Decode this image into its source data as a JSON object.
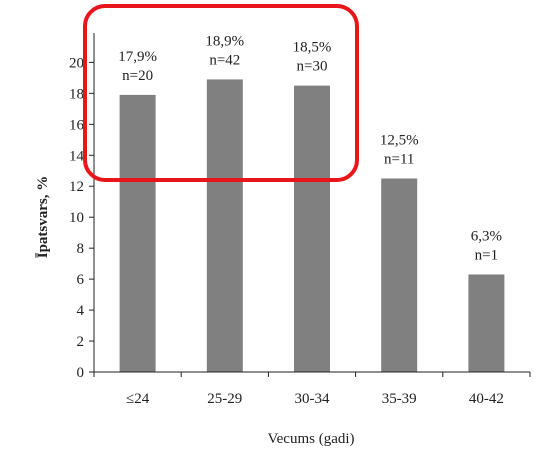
{
  "chart_data": {
    "type": "bar",
    "categories": [
      "≤24",
      "25-29",
      "30-34",
      "35-39",
      "40-42"
    ],
    "values": [
      17.9,
      18.9,
      18.5,
      12.5,
      6.3
    ],
    "data_labels": [
      {
        "percent": "17,9%",
        "n": "n=20"
      },
      {
        "percent": "18,9%",
        "n": "n=42"
      },
      {
        "percent": "18,5%",
        "n": "n=30"
      },
      {
        "percent": "12,5%",
        "n": "n=11"
      },
      {
        "percent": "6,3%",
        "n": "n=1"
      }
    ],
    "title": "",
    "xlabel": "Vecums (gadi)",
    "ylabel": "Īpatsvars, %",
    "ylim": [
      0,
      22
    ],
    "yticks": [
      0,
      2,
      4,
      6,
      8,
      10,
      12,
      14,
      16,
      18,
      20
    ],
    "grid": false,
    "legend": "none",
    "colors": {
      "bar": "#808080",
      "axis": "#222222",
      "highlight": "#e8161b"
    },
    "annotation": {
      "type": "rounded-rectangle highlight",
      "covers_categories": [
        "≤24",
        "25-29",
        "30-34"
      ]
    }
  }
}
